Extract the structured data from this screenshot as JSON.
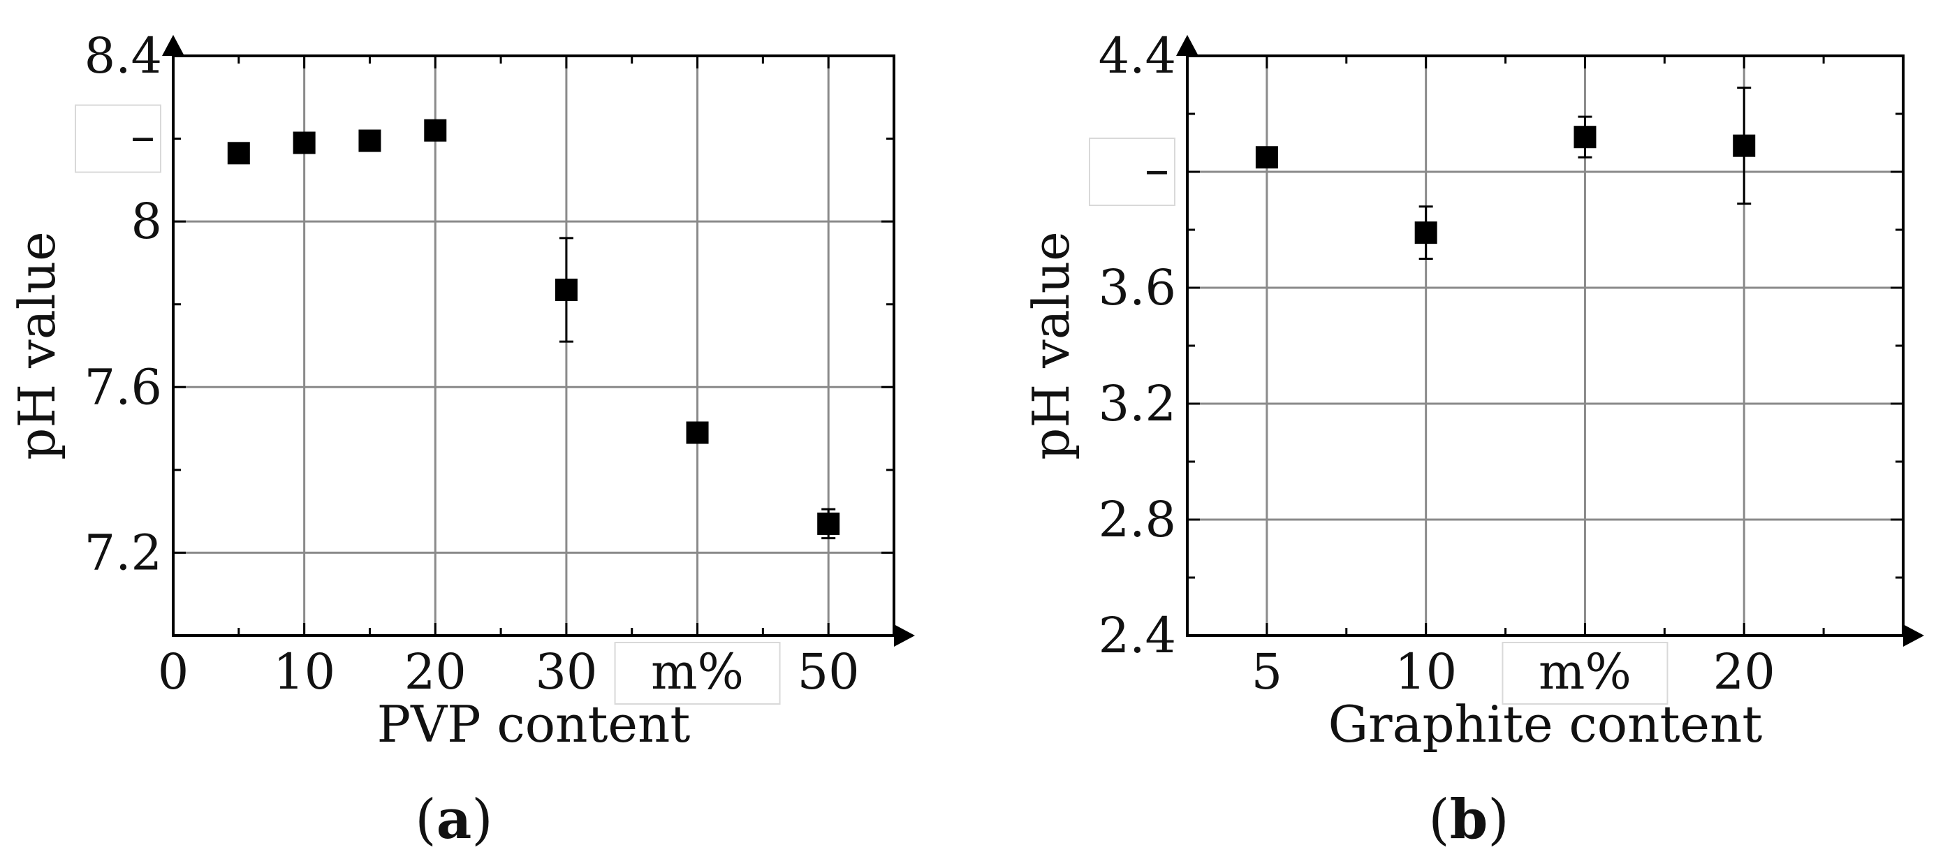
{
  "chart_data": [
    {
      "type": "scatter",
      "panel_label": "(a)",
      "xlabel": "PVP content",
      "ylabel": "pH value",
      "xlim": [
        0,
        55
      ],
      "ylim": [
        7.0,
        8.4
      ],
      "x_ticks": [
        0,
        10,
        20,
        30,
        40,
        50
      ],
      "x_tick_labels": [
        "0",
        "10",
        "20",
        "30",
        "",
        "50"
      ],
      "x_overlay_label": "m%",
      "x_overlay_at": 40,
      "y_ticks": [
        7.2,
        7.6,
        8.0,
        8.4
      ],
      "y_tick_labels": [
        "7.2",
        "7.6",
        "8",
        "8.4"
      ],
      "y_overlay_label": "–",
      "y_overlay_at": 8.2,
      "grid": true,
      "series": [
        {
          "x": [
            5,
            10,
            15,
            20,
            30,
            40,
            50
          ],
          "y": [
            8.165,
            8.19,
            8.195,
            8.22,
            7.835,
            7.49,
            7.27
          ],
          "err": [
            0.01,
            0.01,
            0.01,
            0.01,
            0.125,
            0.01,
            0.035
          ]
        }
      ]
    },
    {
      "type": "scatter",
      "panel_label": "(b)",
      "xlabel": "Graphite content",
      "ylabel": "pH value",
      "xlim": [
        2.5,
        25
      ],
      "ylim": [
        2.4,
        4.4
      ],
      "x_ticks": [
        5,
        10,
        15,
        20
      ],
      "x_tick_labels": [
        "5",
        "10",
        "",
        "20"
      ],
      "x_overlay_label": "m%",
      "x_overlay_at": 15,
      "y_ticks": [
        2.4,
        2.8,
        3.2,
        3.6,
        4.0,
        4.4
      ],
      "y_tick_labels": [
        "2.4",
        "2.8",
        "3.2",
        "3.6",
        "",
        "4.4"
      ],
      "y_overlay_label": "–",
      "y_overlay_at": 4.0,
      "grid": true,
      "series": [
        {
          "x": [
            5,
            10,
            15,
            20
          ],
          "y": [
            4.05,
            3.79,
            4.12,
            4.09
          ],
          "err": [
            0.01,
            0.09,
            0.07,
            0.2
          ]
        }
      ]
    }
  ]
}
